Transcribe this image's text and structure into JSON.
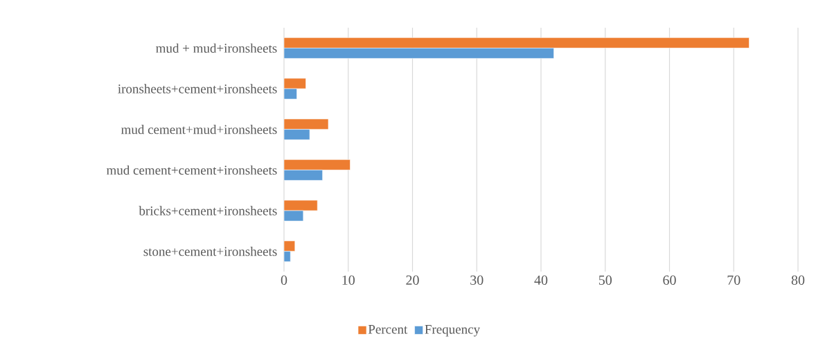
{
  "chart_data": {
    "type": "bar",
    "orientation": "horizontal",
    "categories": [
      "mud + mud+ironsheets",
      "ironsheets+cement+ironsheets",
      "mud cement+mud+ironsheets",
      "mud cement+cement+ironsheets",
      "bricks+cement+ironsheets",
      "stone+cement+ironsheets"
    ],
    "series": [
      {
        "name": "Percent",
        "color": "#ed7d31",
        "values": [
          72.4,
          3.4,
          6.9,
          10.3,
          5.2,
          1.7
        ]
      },
      {
        "name": "Frequency",
        "color": "#5b9bd5",
        "values": [
          42,
          2,
          4,
          6,
          3,
          1
        ]
      }
    ],
    "xlim": [
      0,
      80
    ],
    "xticks": [
      0,
      10,
      20,
      30,
      40,
      50,
      60,
      70,
      80
    ],
    "grid": "x",
    "legend": "bottom"
  }
}
